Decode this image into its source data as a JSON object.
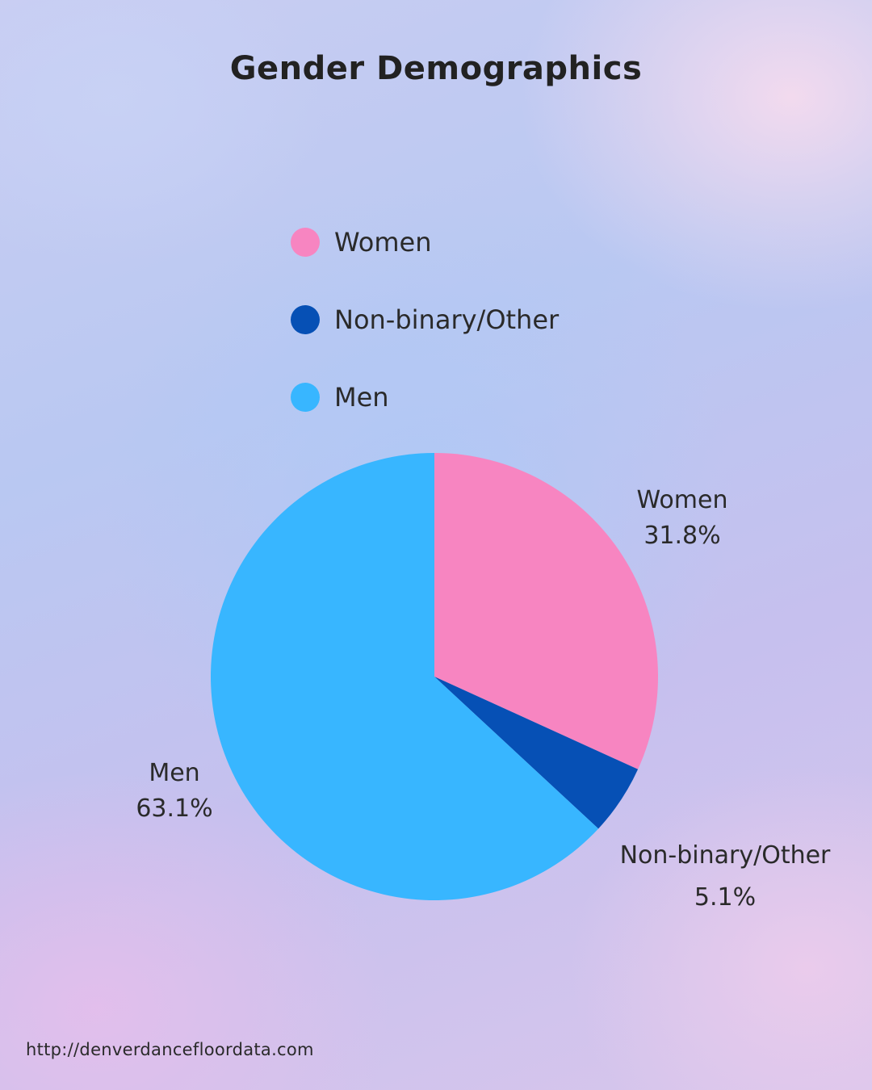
{
  "chart_data": {
    "type": "pie",
    "title": "Gender Demographics",
    "legend_position": "top",
    "categories": [
      "Women",
      "Non-binary/Other",
      "Men"
    ],
    "values": [
      31.8,
      5.1,
      63.1
    ],
    "value_labels": [
      "31.8%",
      "5.1%",
      "63.1%"
    ],
    "colors": [
      "#f785c1",
      "#0650b5",
      "#38b6ff"
    ]
  },
  "footer": {
    "url": "http://denverdancefloordata.com"
  }
}
